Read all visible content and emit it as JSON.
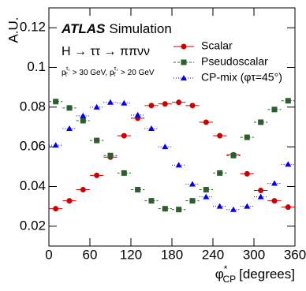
{
  "chart_data": {
    "type": "scatter",
    "ylabel": "A.U.",
    "xlabel": {
      "symbol": "φ",
      "sup": "*",
      "sub": "CP",
      "unit": "[degrees]"
    },
    "experiment": "ATLAS",
    "label": "Simulation",
    "process": "H → ττ → ππνν",
    "cuts": [
      {
        "var": "p",
        "sub": "T",
        "sup": "τ₁",
        "text": " > 30 GeV, "
      },
      {
        "var": "p",
        "sub": "T",
        "sup": "τ₂",
        "text": " > 20 GeV"
      }
    ],
    "bins": [
      0,
      20,
      40,
      60,
      80,
      100,
      120,
      140,
      160,
      180,
      200,
      220,
      240,
      260,
      280,
      300,
      320,
      340,
      360
    ],
    "series": [
      {
        "name": "Scalar",
        "color": "#cc0000",
        "marker": "circle",
        "linestyle": "solid",
        "values": [
          0.0288,
          0.0328,
          0.0384,
          0.0456,
          0.0548,
          0.0656,
          0.0744,
          0.0808,
          0.0816,
          0.0824,
          0.0808,
          0.0724,
          0.0656,
          0.056,
          0.0464,
          0.038,
          0.0328,
          0.0296
        ]
      },
      {
        "name": "Pseudoscalar",
        "color": "#2d5e2d",
        "marker": "square",
        "linestyle": "dashed",
        "values": [
          0.0828,
          0.0796,
          0.0732,
          0.0632,
          0.0556,
          0.0468,
          0.0384,
          0.0328,
          0.0288,
          0.0284,
          0.0328,
          0.0384,
          0.0468,
          0.0556,
          0.0648,
          0.0724,
          0.0788,
          0.0832
        ]
      },
      {
        "name": "CP-mix (φτ=45°)",
        "color": "#0000ee",
        "marker": "triangle",
        "linestyle": "dotted",
        "values": [
          0.0608,
          0.0692,
          0.0756,
          0.08,
          0.0824,
          0.082,
          0.076,
          0.0692,
          0.06,
          0.0508,
          0.0412,
          0.0348,
          0.03,
          0.0284,
          0.03,
          0.0348,
          0.0416,
          0.0512
        ]
      }
    ],
    "xlim": [
      0,
      360
    ],
    "ylim": [
      0.01,
      0.13
    ],
    "xticks": [
      0,
      60,
      120,
      180,
      240,
      300,
      360
    ],
    "yticks": [
      0.02,
      0.04,
      0.06,
      0.08,
      0.1,
      0.12
    ],
    "legend": "upper right"
  }
}
